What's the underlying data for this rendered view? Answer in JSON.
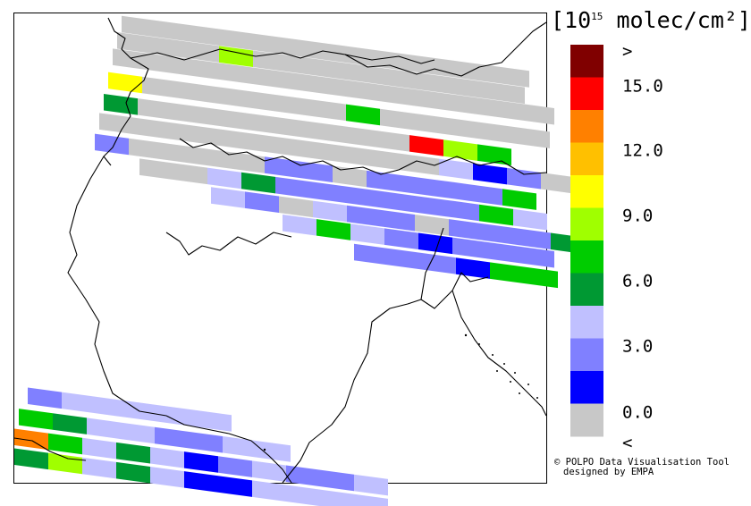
{
  "legend": {
    "title_pre": "[10",
    "title_sup": "15",
    "title_post": " molec/cm²]",
    "ticks": [
      ">",
      "15.0",
      "12.0",
      "9.0",
      "6.0",
      "3.0",
      "0.0",
      "<"
    ],
    "colors": [
      "#800000",
      "#ff0000",
      "#ff8000",
      "#ffc000",
      "#ffff00",
      "#a0ff00",
      "#00cc00",
      "#009933",
      "#c0c0ff",
      "#8080ff",
      "#0000ff",
      "#c8c8c8"
    ]
  },
  "credit": {
    "line1": "© POLPO Data Visualisation Tool",
    "line2": "designed by EMPA"
  },
  "swath_colors": {
    "grey": "#c8c8c8",
    "lightblue": "#c0c0ff",
    "blue": "#8080ff",
    "darkblue": "#0000ff",
    "darkgreen": "#009933",
    "green": "#00cc00",
    "yellowgreen": "#a0ff00",
    "yellow": "#ffff00",
    "orange": "#ff8000",
    "red": "#ff0000"
  }
}
